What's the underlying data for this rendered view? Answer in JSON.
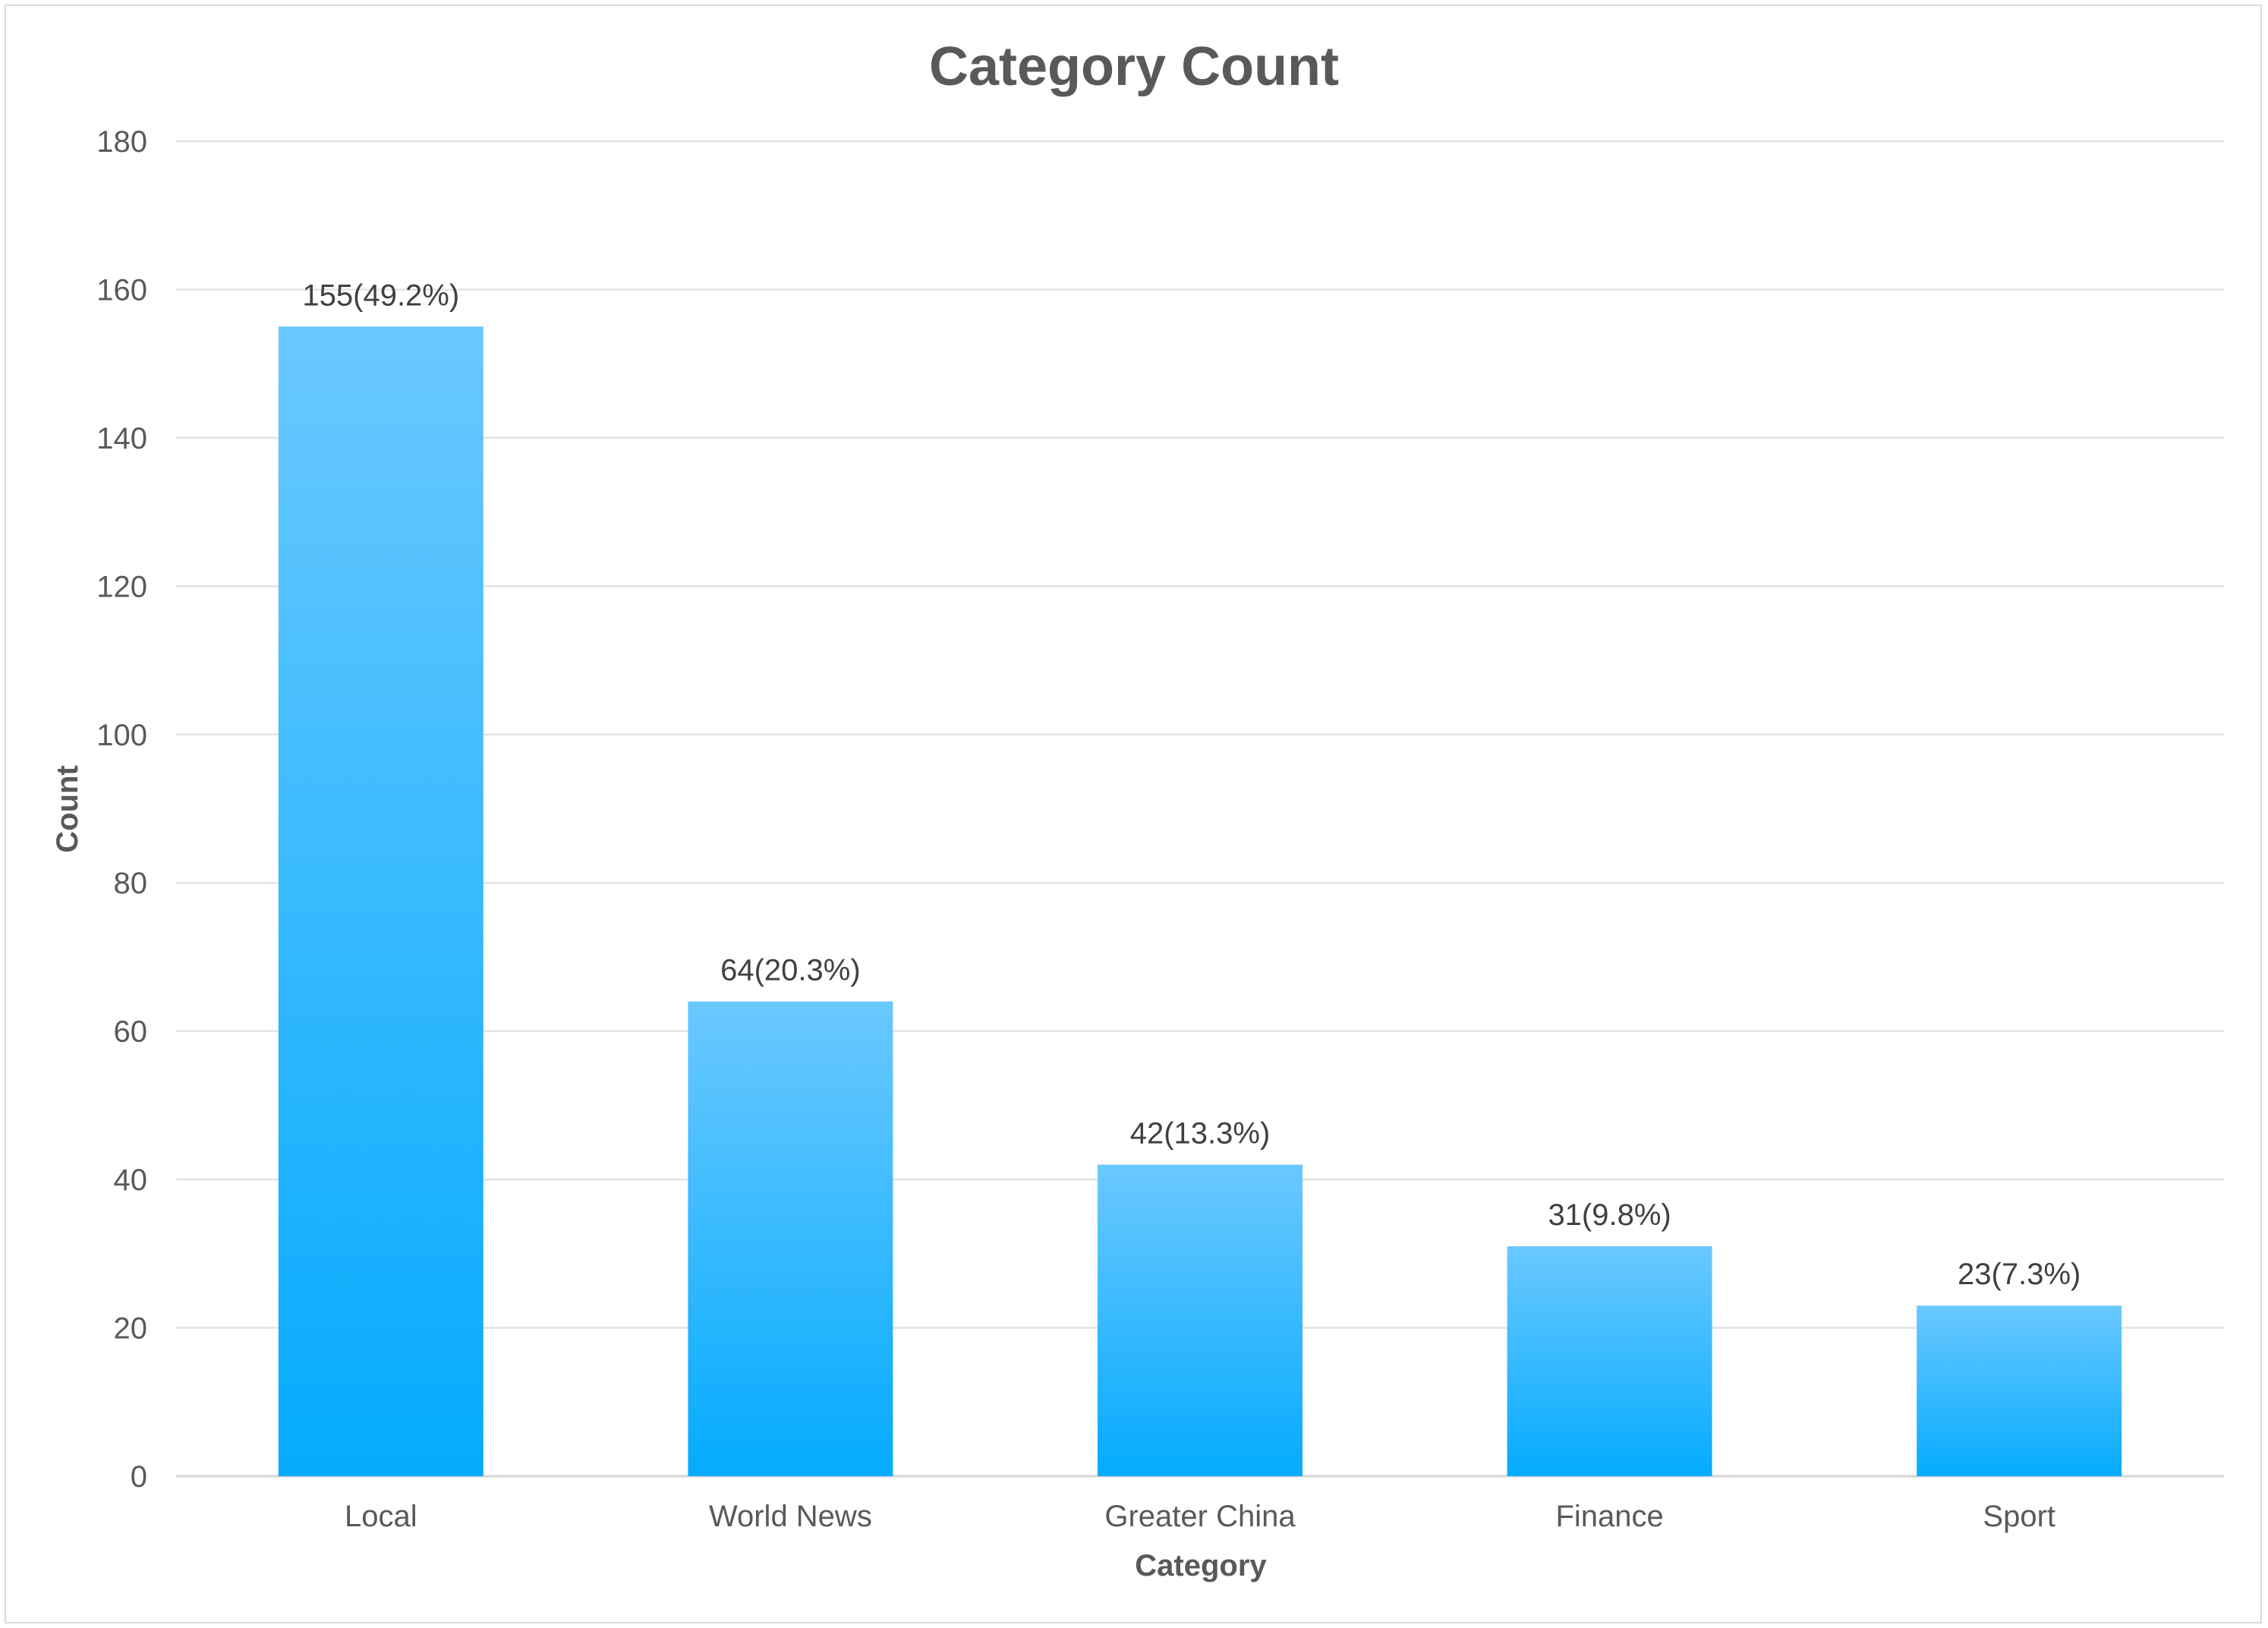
{
  "chart_data": {
    "type": "bar",
    "title": "Category Count",
    "xlabel": "Category",
    "ylabel": "Count",
    "categories": [
      "Local",
      "World News",
      "Greater China",
      "Finance",
      "Sport"
    ],
    "values": [
      155,
      64,
      42,
      31,
      23
    ],
    "data_labels": [
      "155(49.2%)",
      "64(20.3%)",
      "42(13.3%)",
      "31(9.8%)",
      "23(7.3%)"
    ],
    "yticks": [
      0,
      20,
      40,
      60,
      80,
      100,
      120,
      140,
      160,
      180
    ],
    "ylim": [
      0,
      180
    ],
    "grid": true,
    "legend": "none",
    "colors": {
      "bar_top": "#6ac8ff",
      "bar_bottom": "#05abfd",
      "text": "#595959",
      "grid": "#e3e3e3"
    }
  }
}
